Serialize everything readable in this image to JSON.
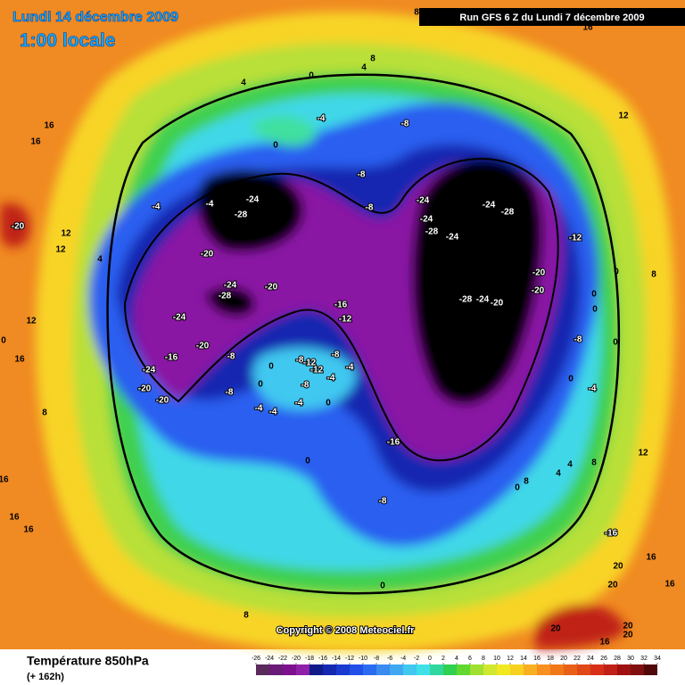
{
  "header": {
    "title": "Lundi 14 décembre 2009",
    "subtitle": "1:00 locale",
    "run": "Run GFS 6 Z du Lundi 7 décembre 2009"
  },
  "map": {
    "copyright": "Copyright © 2008 Meteociel.fr",
    "contour_labels": [
      8,
      16,
      8,
      4,
      4,
      0,
      -4,
      -8,
      12,
      16,
      16,
      0,
      -8,
      -4,
      -4,
      -24,
      -28,
      -24,
      -24,
      -28,
      -8,
      -24,
      -28,
      -24,
      -20,
      12,
      12,
      4,
      -20,
      -12,
      0,
      8,
      -20,
      -20,
      -24,
      -28,
      -20,
      0,
      -16,
      -28,
      -24,
      -20,
      12,
      -24,
      -12,
      0,
      -8,
      0,
      0,
      -20,
      -16,
      -8,
      -8,
      -12,
      -8,
      16,
      -24,
      -4,
      0,
      -4,
      -12,
      -8,
      0,
      -4,
      -20,
      -8,
      0,
      -20,
      -4,
      0,
      -4,
      -4,
      8,
      -16,
      12,
      4,
      8,
      4,
      8,
      0,
      0,
      16,
      -8,
      16,
      16,
      -16,
      16,
      20,
      20,
      0,
      20,
      20,
      20,
      8,
      16,
      16
    ]
  },
  "footer": {
    "label": "Température 850hPa",
    "lead": "(+ 162h)"
  },
  "colorbar": {
    "ticks": [
      -26,
      -24,
      -22,
      -20,
      -18,
      -16,
      -14,
      -12,
      -10,
      -8,
      -6,
      -4,
      -2,
      0,
      2,
      4,
      6,
      8,
      10,
      12,
      14,
      16,
      18,
      20,
      22,
      24,
      26,
      28,
      30,
      32,
      34
    ],
    "colors": [
      "#5a2a5a",
      "#6a1a78",
      "#7d108e",
      "#9020a8",
      "#101a8a",
      "#1428b0",
      "#1a3ad0",
      "#2050e8",
      "#2a6cf0",
      "#3a8af0",
      "#40a8f0",
      "#40c8f0",
      "#40e0e8",
      "#30d8a0",
      "#30d050",
      "#60d830",
      "#a0e030",
      "#d0e830",
      "#f0e820",
      "#f8d020",
      "#f8b020",
      "#f89020",
      "#f07818",
      "#e86018",
      "#e04818",
      "#d83018",
      "#c02018",
      "#a01010",
      "#801010",
      "#500808"
    ]
  }
}
